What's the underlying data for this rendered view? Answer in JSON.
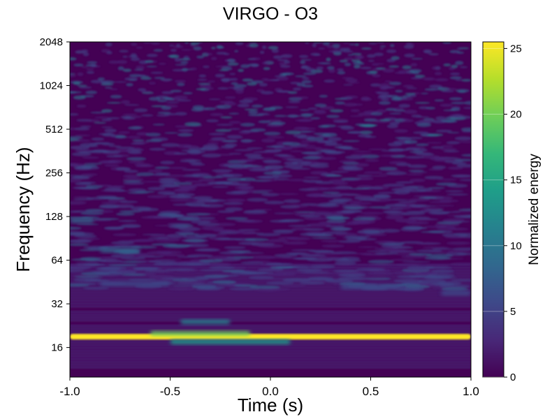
{
  "chart_data": {
    "type": "heatmap",
    "title": "VIRGO - O3",
    "xlabel": "Time (s)",
    "ylabel": "Frequency (Hz)",
    "xlim": [
      -1.0,
      1.0
    ],
    "ylim": [
      10,
      2048
    ],
    "yscale": "log2",
    "x_ticks": [
      -1.0,
      -0.5,
      0.0,
      0.5,
      1.0
    ],
    "x_tick_labels": [
      "-1.0",
      "-0.5",
      "0.0",
      "0.5",
      "1.0"
    ],
    "y_ticks": [
      16,
      32,
      64,
      128,
      256,
      512,
      1024,
      2048
    ],
    "y_tick_labels": [
      "16",
      "32",
      "64",
      "128",
      "256",
      "512",
      "1024",
      "2048"
    ],
    "colorbar": {
      "label": "Normalized energy",
      "range": [
        0,
        25.5
      ],
      "ticks": [
        0,
        5,
        10,
        15,
        20,
        25
      ],
      "tick_labels": [
        "0",
        "5",
        "10",
        "15",
        "20",
        "25"
      ],
      "colormap": "viridis"
    },
    "features": [
      {
        "freq": 19,
        "t_start": -1.0,
        "t_end": 1.0,
        "energy": 25
      },
      {
        "freq": 20,
        "t_start": -0.6,
        "t_end": -0.1,
        "energy": 20
      },
      {
        "freq": 17.5,
        "t_start": -0.5,
        "t_end": 0.1,
        "energy": 14
      },
      {
        "freq": 24,
        "t_start": -0.45,
        "t_end": -0.2,
        "energy": 12
      },
      {
        "freq": 75,
        "t_start": -0.85,
        "t_end": -0.65,
        "energy": 9
      },
      {
        "freq": 120,
        "t_start": -1.0,
        "t_end": -0.88,
        "energy": 8
      },
      {
        "freq": 42,
        "t_start": 0.35,
        "t_end": 0.65,
        "energy": 7
      },
      {
        "freq": 38,
        "t_start": 0.85,
        "t_end": 1.0,
        "energy": 7
      },
      {
        "freq": 44,
        "t_start": -0.85,
        "t_end": -0.5,
        "energy": 6
      }
    ]
  },
  "colors": {
    "viridis": [
      "#440154",
      "#482878",
      "#3e4989",
      "#31688e",
      "#26828e",
      "#1f9e89",
      "#35b779",
      "#6ece58",
      "#b5de2b",
      "#fde725"
    ],
    "axis": "#000000",
    "background": "#ffffff"
  }
}
